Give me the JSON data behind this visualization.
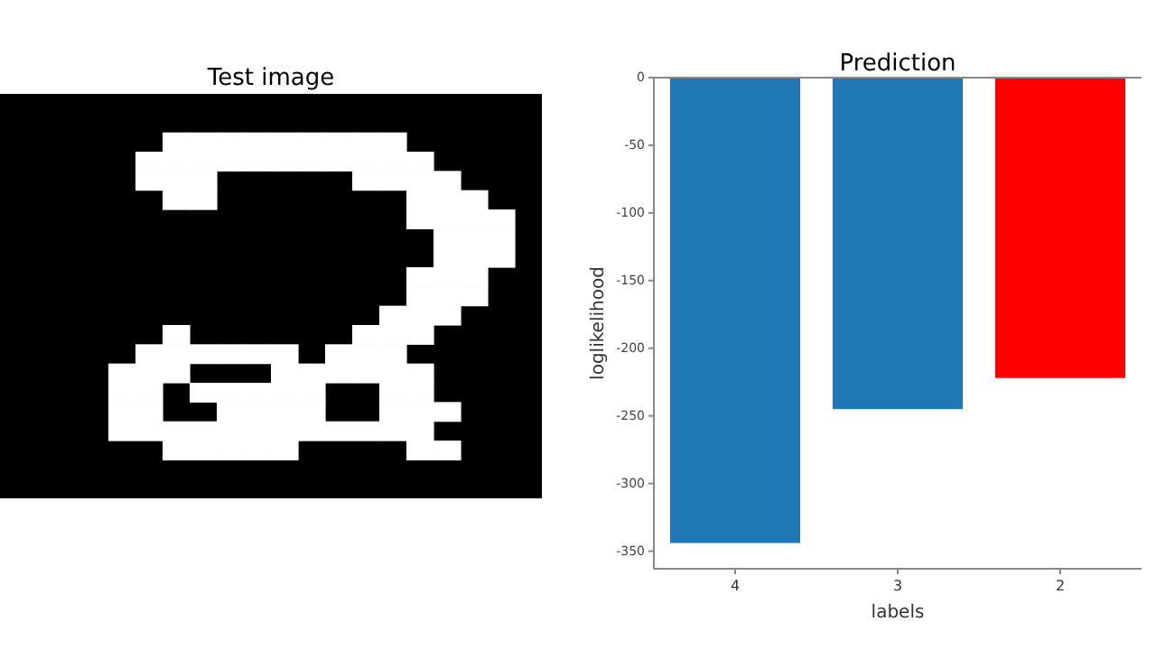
{
  "chart_data": [
    {
      "type": "other",
      "title": "Test image"
    },
    {
      "type": "bar",
      "title": "Prediction",
      "categories": [
        "4",
        "3",
        "2"
      ],
      "values": [
        -344,
        -245,
        -222
      ],
      "colors": [
        "#1f77b4",
        "#1f77b4",
        "#ff0000"
      ],
      "xlabel": "labels",
      "ylabel": "loglikelihood",
      "ylim": [
        -363,
        0
      ],
      "yticks": [
        0,
        -50,
        -100,
        -150,
        -200,
        -250,
        -300,
        -350
      ]
    }
  ]
}
